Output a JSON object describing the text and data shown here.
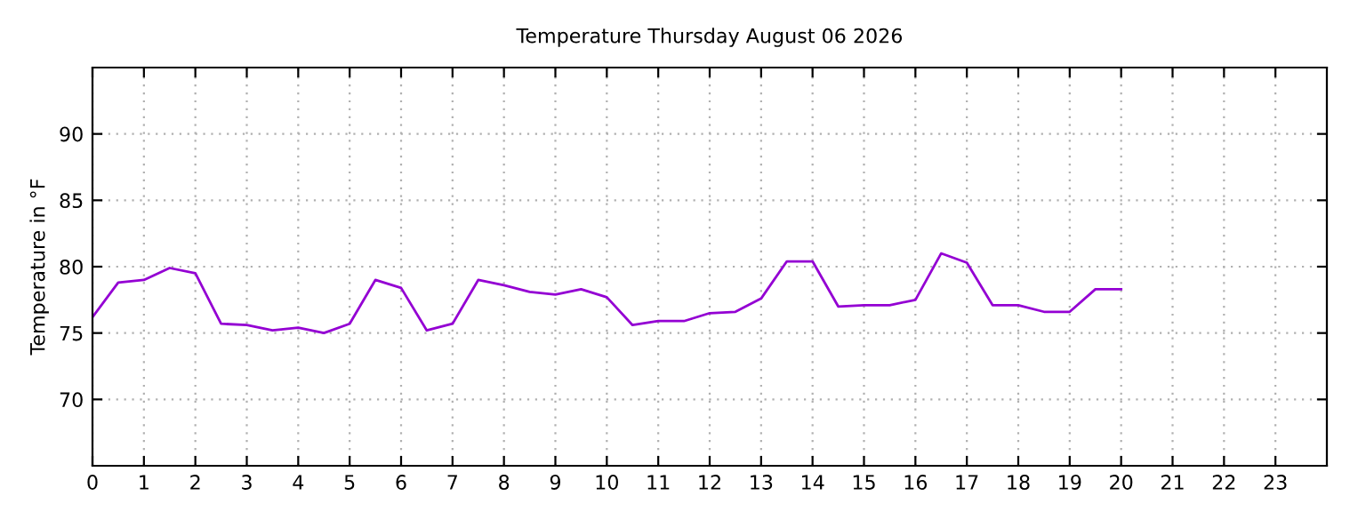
{
  "chart_data": {
    "type": "line",
    "title": "Temperature Thursday August 06 2026",
    "ylabel": "Temperature in °F",
    "x": [
      0,
      0.5,
      1,
      1.5,
      2,
      2.5,
      3,
      3.5,
      4,
      4.5,
      5,
      5.5,
      6,
      6.5,
      7,
      7.5,
      8,
      8.5,
      9,
      9.5,
      10,
      10.5,
      11,
      11.5,
      12,
      12.5,
      13,
      13.5,
      14,
      14.5,
      15,
      15.5,
      16,
      16.5,
      17,
      17.5,
      18,
      18.5,
      19,
      19.5,
      20
    ],
    "series": [
      {
        "color": "#9400d3",
        "values": [
          76.2,
          78.8,
          79.0,
          79.9,
          79.5,
          75.7,
          75.6,
          75.2,
          75.4,
          75.0,
          75.7,
          79.0,
          78.4,
          75.2,
          75.7,
          79.0,
          78.6,
          78.1,
          77.9,
          78.3,
          77.7,
          75.6,
          75.9,
          75.9,
          76.5,
          76.6,
          77.6,
          80.4,
          80.4,
          77.0,
          77.1,
          77.1,
          77.5,
          81.0,
          80.3,
          77.1,
          77.1,
          76.6,
          76.6,
          78.3,
          78.3
        ]
      }
    ],
    "xlim": [
      0,
      24
    ],
    "xticks": [
      0,
      1,
      2,
      3,
      4,
      5,
      6,
      7,
      8,
      9,
      10,
      11,
      12,
      13,
      14,
      15,
      16,
      17,
      18,
      19,
      20,
      21,
      22,
      23
    ],
    "ylim": [
      65,
      95
    ],
    "yticks": [
      70,
      75,
      80,
      85,
      90
    ],
    "grid": true,
    "marker": "none",
    "line_style": "solid",
    "legend": false
  }
}
